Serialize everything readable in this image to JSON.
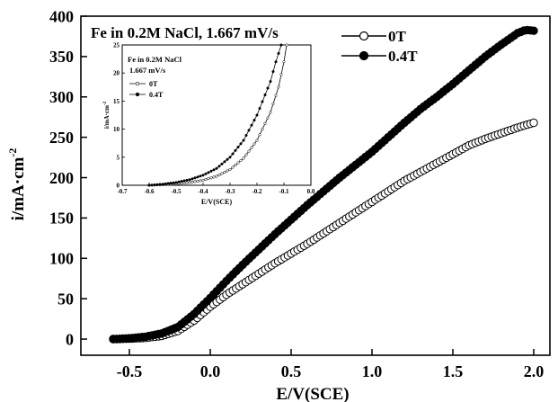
{
  "chart_data": [
    {
      "type": "scatter",
      "title": "Fe in 0.2M NaCl, 1.667 mV/s",
      "xlabel": "E/V(SCE)",
      "ylabel": "i/mA·cm",
      "ylabel_sup": "-2",
      "xlim": [
        -0.8,
        2.1
      ],
      "ylim": [
        -20,
        400
      ],
      "x_ticks": [
        -0.5,
        0.0,
        0.5,
        1.0,
        1.5,
        2.0
      ],
      "x_tick_labels": [
        "-0.5",
        "0.0",
        "0.5",
        "1.0",
        "1.5",
        "2.0"
      ],
      "y_ticks": [
        0,
        50,
        100,
        150,
        200,
        250,
        300,
        350,
        400
      ],
      "y_tick_labels": [
        "0",
        "50",
        "100",
        "150",
        "200",
        "250",
        "300",
        "350",
        "400"
      ],
      "legend_position": "top-right",
      "series": [
        {
          "name": "0T",
          "marker": "open-circle",
          "x": [
            -0.6,
            -0.5,
            -0.4,
            -0.3,
            -0.2,
            -0.1,
            0.0,
            0.1,
            0.2,
            0.3,
            0.4,
            0.5,
            0.6,
            0.7,
            0.8,
            0.9,
            1.0,
            1.1,
            1.2,
            1.3,
            1.4,
            1.5,
            1.6,
            1.7,
            1.8,
            1.9,
            2.0
          ],
          "y": [
            0,
            0.5,
            1.5,
            4,
            10,
            23,
            40,
            55,
            68,
            81,
            94,
            106,
            118,
            131,
            144,
            157,
            170,
            183,
            196,
            207,
            218,
            229,
            240,
            248,
            255,
            262,
            268
          ]
        },
        {
          "name": "0.4T",
          "marker": "filled-circle",
          "x": [
            -0.6,
            -0.5,
            -0.4,
            -0.3,
            -0.2,
            -0.1,
            0.0,
            0.1,
            0.2,
            0.3,
            0.4,
            0.5,
            0.6,
            0.7,
            0.8,
            0.9,
            1.0,
            1.1,
            1.2,
            1.3,
            1.4,
            1.5,
            1.6,
            1.7,
            1.8,
            1.9,
            1.95,
            2.0
          ],
          "y": [
            0,
            1,
            3,
            7,
            15,
            31,
            51,
            72,
            92,
            111,
            130,
            148,
            166,
            183,
            200,
            216,
            232,
            250,
            268,
            285,
            300,
            316,
            333,
            350,
            365,
            379,
            383,
            382
          ]
        }
      ]
    },
    {
      "type": "line",
      "title": "Fe in 0.2M NaCl",
      "subtitle": "1.667 mV/s",
      "xlabel": "E/V(SCE)",
      "ylabel": "i/mA·cm",
      "ylabel_sup": "-2",
      "xlim": [
        -0.7,
        0.0
      ],
      "ylim": [
        0,
        25
      ],
      "x_ticks": [
        -0.7,
        -0.6,
        -0.5,
        -0.4,
        -0.3,
        -0.2,
        -0.1,
        0.0
      ],
      "x_tick_labels": [
        "-0.7",
        "-0.6",
        "-0.5",
        "-0.4",
        "-0.3",
        "-0.2",
        "-0.1",
        "0.0"
      ],
      "y_ticks": [
        0,
        5,
        10,
        15,
        20,
        25
      ],
      "y_tick_labels": [
        "0",
        "5",
        "10",
        "15",
        "20",
        "25"
      ],
      "legend_position": "top-left",
      "series": [
        {
          "name": "0T",
          "marker": "open-circle",
          "x": [
            -0.6,
            -0.55,
            -0.5,
            -0.45,
            -0.4,
            -0.35,
            -0.3,
            -0.25,
            -0.2,
            -0.15,
            -0.12,
            -0.1,
            -0.09
          ],
          "y": [
            0,
            0.1,
            0.25,
            0.5,
            0.9,
            1.6,
            2.8,
            4.8,
            8.0,
            13.0,
            17.5,
            22.0,
            25.0
          ]
        },
        {
          "name": "0.4T",
          "marker": "filled-circle",
          "x": [
            -0.6,
            -0.55,
            -0.5,
            -0.45,
            -0.4,
            -0.35,
            -0.3,
            -0.25,
            -0.2,
            -0.15,
            -0.13,
            -0.11
          ],
          "y": [
            0,
            0.2,
            0.5,
            1.0,
            1.8,
            3.0,
            5.0,
            8.0,
            12.5,
            18.5,
            22.0,
            25.0
          ]
        }
      ]
    }
  ]
}
